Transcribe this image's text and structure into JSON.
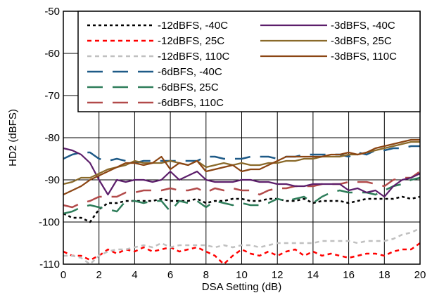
{
  "chart_data": {
    "type": "line",
    "title": "",
    "xlabel": "DSA Setting (dB)",
    "ylabel": "HD2 (dBFS)",
    "xlim": [
      0,
      20
    ],
    "ylim": [
      -110,
      -50
    ],
    "xticks": [
      0,
      2,
      4,
      6,
      8,
      10,
      12,
      14,
      16,
      18,
      20
    ],
    "yticks": [
      -110,
      -100,
      -90,
      -80,
      -70,
      -60,
      -50
    ],
    "grid": true,
    "legend_position": "top-right",
    "series": [
      {
        "name": "-12dBFS, -40C",
        "color": "#000000",
        "style": "dotted",
        "x": [
          0,
          0.5,
          1,
          1.5,
          2,
          2.5,
          3,
          3.5,
          4,
          4.5,
          5,
          5.5,
          6,
          6.5,
          7,
          7.5,
          8,
          8.5,
          9,
          9.5,
          10,
          10.5,
          11,
          11.5,
          12,
          12.5,
          13,
          13.5,
          14,
          14.5,
          15,
          15.5,
          16,
          16.5,
          17,
          17.5,
          18,
          18.5,
          19,
          19.5,
          20
        ],
        "y": [
          -98,
          -99,
          -99,
          -100,
          -97,
          -95.5,
          -95.5,
          -95,
          -95,
          -95,
          -95,
          -94.5,
          -95,
          -95,
          -95,
          -94.5,
          -95.5,
          -95,
          -95,
          -94.5,
          -94.5,
          -95,
          -95,
          -94.5,
          -94.5,
          -95,
          -95,
          -94.5,
          -95.5,
          -95,
          -95,
          -95,
          -95.5,
          -95,
          -94.5,
          -94.5,
          -94.5,
          -94.5,
          -94,
          -94.5,
          -94
        ]
      },
      {
        "name": "-12dBFS, 25C",
        "color": "#ff0000",
        "style": "dashed",
        "x": [
          0,
          0.5,
          1,
          1.5,
          2,
          2.5,
          3,
          3.5,
          4,
          4.5,
          5,
          5.5,
          6,
          6.5,
          7,
          7.5,
          8,
          8.5,
          9,
          9.5,
          10,
          10.5,
          11,
          11.5,
          12,
          12.5,
          13,
          13.5,
          14,
          14.5,
          15,
          15.5,
          16,
          16.5,
          17,
          17.5,
          18,
          18.5,
          19,
          19.5,
          20
        ],
        "y": [
          -107,
          -108,
          -108,
          -109,
          -108,
          -106.5,
          -107.5,
          -106.5,
          -107,
          -106,
          -107,
          -106.5,
          -106,
          -107,
          -106.5,
          -106,
          -107,
          -108,
          -110,
          -108,
          -106.5,
          -107.5,
          -108,
          -107,
          -108,
          -107,
          -106.5,
          -108,
          -107,
          -108,
          -107.5,
          -108,
          -108.5,
          -108,
          -107.5,
          -107.5,
          -108,
          -107,
          -106.5,
          -106.5,
          -105
        ]
      },
      {
        "name": "-12dBFS, 110C",
        "color": "#c0c0c0",
        "style": "dashed",
        "x": [
          0,
          0.5,
          1,
          1.5,
          2,
          2.5,
          3,
          3.5,
          4,
          4.5,
          5,
          5.5,
          6,
          6.5,
          7,
          7.5,
          8,
          8.5,
          9,
          9.5,
          10,
          10.5,
          11,
          11.5,
          12,
          12.5,
          13,
          13.5,
          14,
          14.5,
          15,
          15.5,
          16,
          16.5,
          17,
          17.5,
          18,
          18.5,
          19,
          19.5,
          20
        ],
        "y": [
          -108,
          -108,
          -108.5,
          -110,
          -108,
          -107,
          -106.5,
          -106.5,
          -106,
          -105.5,
          -106,
          -105,
          -106,
          -105.5,
          -105.5,
          -105.5,
          -105.5,
          -106,
          -105.5,
          -106,
          -105.5,
          -105.5,
          -106,
          -105.5,
          -105,
          -105,
          -105,
          -105,
          -105,
          -104.5,
          -104.5,
          -104.5,
          -104.5,
          -105,
          -104.5,
          -104.5,
          -104.5,
          -104,
          -103,
          -102.5,
          -101.5
        ]
      },
      {
        "name": "-6dBFS, -40C",
        "color": "#1e5a87",
        "style": "long-dash",
        "x": [
          0,
          0.5,
          1,
          1.5,
          2,
          2.5,
          3,
          3.5,
          4,
          4.5,
          5,
          5.5,
          6,
          6.5,
          7,
          7.5,
          8,
          8.5,
          9,
          9.5,
          10,
          10.5,
          11,
          11.5,
          12,
          12.5,
          13,
          13.5,
          14,
          14.5,
          15,
          15.5,
          16,
          16.5,
          17,
          17.5,
          18,
          18.5,
          19,
          19.5,
          20
        ],
        "y": [
          -85,
          -84,
          -83.5,
          -83.5,
          -85,
          -85.5,
          -85,
          -85.5,
          -86,
          -85.5,
          -85.5,
          -85.5,
          -85.5,
          -85.5,
          -85.5,
          -85.5,
          -84.5,
          -84.5,
          -85,
          -85,
          -85,
          -84.5,
          -84.5,
          -84.5,
          -85,
          -84.5,
          -84.5,
          -84,
          -84,
          -84,
          -84,
          -84,
          -84.5,
          -83.5,
          -84,
          -83,
          -83,
          -82.5,
          -82.5,
          -82,
          -82
        ]
      },
      {
        "name": "-6dBFS, 25C",
        "color": "#2e7d5a",
        "style": "long-dash",
        "x": [
          0,
          0.5,
          1,
          1.5,
          2,
          2.5,
          3,
          3.5,
          4,
          4.5,
          5,
          5.5,
          6,
          6.5,
          7,
          7.5,
          8,
          8.5,
          9,
          9.5,
          10,
          10.5,
          11,
          11.5,
          12,
          12.5,
          13,
          13.5,
          14,
          14.5,
          15,
          15.5,
          16,
          16.5,
          17,
          17.5,
          18,
          18.5,
          19,
          19.5,
          20
        ],
        "y": [
          -98,
          -97.5,
          -96.5,
          -96,
          -96.5,
          -97,
          -97.5,
          -95,
          -95,
          -95.5,
          -95,
          -95,
          -97.5,
          -95,
          -95.5,
          -95,
          -96.5,
          -95,
          -95.5,
          -96,
          -95.5,
          -96,
          -96,
          -95.5,
          -94.5,
          -95,
          -94.5,
          -94,
          -95.5,
          -94,
          -93,
          -92.5,
          -93,
          -93,
          -93,
          -93.5,
          -92.5,
          -91.5,
          -91,
          -90,
          -89.5
        ]
      },
      {
        "name": "-6dBFS, 110C",
        "color": "#b24a4a",
        "style": "long-dash",
        "x": [
          0,
          0.5,
          1,
          1.5,
          2,
          2.5,
          3,
          3.5,
          4,
          4.5,
          5,
          5.5,
          6,
          6.5,
          7,
          7.5,
          8,
          8.5,
          9,
          9.5,
          10,
          10.5,
          11,
          11.5,
          12,
          12.5,
          13,
          13.5,
          14,
          14.5,
          15,
          15.5,
          16,
          16.5,
          17,
          17.5,
          18,
          18.5,
          19,
          19.5,
          20
        ],
        "y": [
          -96,
          -96.5,
          -95.5,
          -95,
          -94,
          -94,
          -94,
          -93,
          -93,
          -92.5,
          -92.5,
          -92.5,
          -92,
          -92.5,
          -92.5,
          -92,
          -93,
          -92,
          -92.5,
          -92,
          -92.5,
          -92.5,
          -93.5,
          -92.5,
          -92,
          -92,
          -91.5,
          -91.5,
          -91.5,
          -91,
          -91,
          -91,
          -90.5,
          -90.5,
          -90.5,
          -91,
          -91.5,
          -90,
          -89.5,
          -89.5,
          -88
        ]
      },
      {
        "name": "-3dBFS, -40C",
        "color": "#5c1e6b",
        "style": "solid",
        "x": [
          0,
          0.5,
          1,
          1.5,
          2,
          2.5,
          3,
          3.5,
          4,
          4.5,
          5,
          5.5,
          6,
          6.5,
          7,
          7.5,
          8,
          8.5,
          9,
          9.5,
          10,
          10.5,
          11,
          11.5,
          12,
          12.5,
          13,
          13.5,
          14,
          14.5,
          15,
          15.5,
          16,
          16.5,
          17,
          17.5,
          18,
          18.5,
          19,
          19.5,
          20
        ],
        "y": [
          -82.5,
          -83,
          -84,
          -86,
          -90,
          -93.5,
          -90,
          -90.5,
          -90,
          -90,
          -90.5,
          -90,
          -88,
          -90,
          -89,
          -88,
          -90,
          -90.5,
          -90.5,
          -90.5,
          -90,
          -90,
          -90.5,
          -90.5,
          -91,
          -91,
          -91.5,
          -91.5,
          -91,
          -91,
          -91,
          -91,
          -92.5,
          -92,
          -93,
          -92.5,
          -94,
          -91.5,
          -90,
          -89.5,
          -88.5
        ]
      },
      {
        "name": "-3dBFS, 25C",
        "color": "#8a6a2a",
        "style": "solid",
        "x": [
          0,
          0.5,
          1,
          1.5,
          2,
          2.5,
          3,
          3.5,
          4,
          4.5,
          5,
          5.5,
          6,
          6.5,
          7,
          7.5,
          8,
          8.5,
          9,
          9.5,
          10,
          10.5,
          11,
          11.5,
          12,
          12.5,
          13,
          13.5,
          14,
          14.5,
          15,
          15.5,
          16,
          16.5,
          17,
          17.5,
          18,
          18.5,
          19,
          19.5,
          20
        ],
        "y": [
          -91,
          -90.5,
          -89.5,
          -89.5,
          -88.5,
          -87.5,
          -87,
          -86.5,
          -85.5,
          -86,
          -86,
          -86,
          -85.5,
          -86,
          -86.5,
          -85.5,
          -87,
          -86.5,
          -86,
          -86.5,
          -86,
          -86.5,
          -86.5,
          -86,
          -86,
          -85.5,
          -85.5,
          -85,
          -85,
          -84.5,
          -84.5,
          -84.5,
          -84,
          -84,
          -83.5,
          -83,
          -82.5,
          -82,
          -81.5,
          -81,
          -81
        ]
      },
      {
        "name": "-3dBFS, 110C",
        "color": "#8b4513",
        "style": "solid",
        "x": [
          0,
          0.5,
          1,
          1.5,
          2,
          2.5,
          3,
          3.5,
          4,
          4.5,
          5,
          5.5,
          6,
          6.5,
          7,
          7.5,
          8,
          8.5,
          9,
          9.5,
          10,
          10.5,
          11,
          11.5,
          12,
          12.5,
          13,
          13.5,
          14,
          14.5,
          15,
          15.5,
          16,
          16.5,
          17,
          17.5,
          18,
          18.5,
          19,
          19.5,
          20
        ],
        "y": [
          -93.5,
          -92.5,
          -91.5,
          -90,
          -89,
          -88,
          -87,
          -86,
          -86,
          -86.5,
          -86,
          -84.5,
          -87.5,
          -86,
          -86.5,
          -85.5,
          -88,
          -87.5,
          -87,
          -86.5,
          -88,
          -87.5,
          -87.5,
          -86.5,
          -85.5,
          -84.5,
          -84.5,
          -84.5,
          -84.5,
          -84.5,
          -84,
          -84,
          -83.5,
          -84,
          -83.5,
          -82.5,
          -82,
          -81.5,
          -81,
          -80.5,
          -80.5
        ]
      }
    ]
  }
}
